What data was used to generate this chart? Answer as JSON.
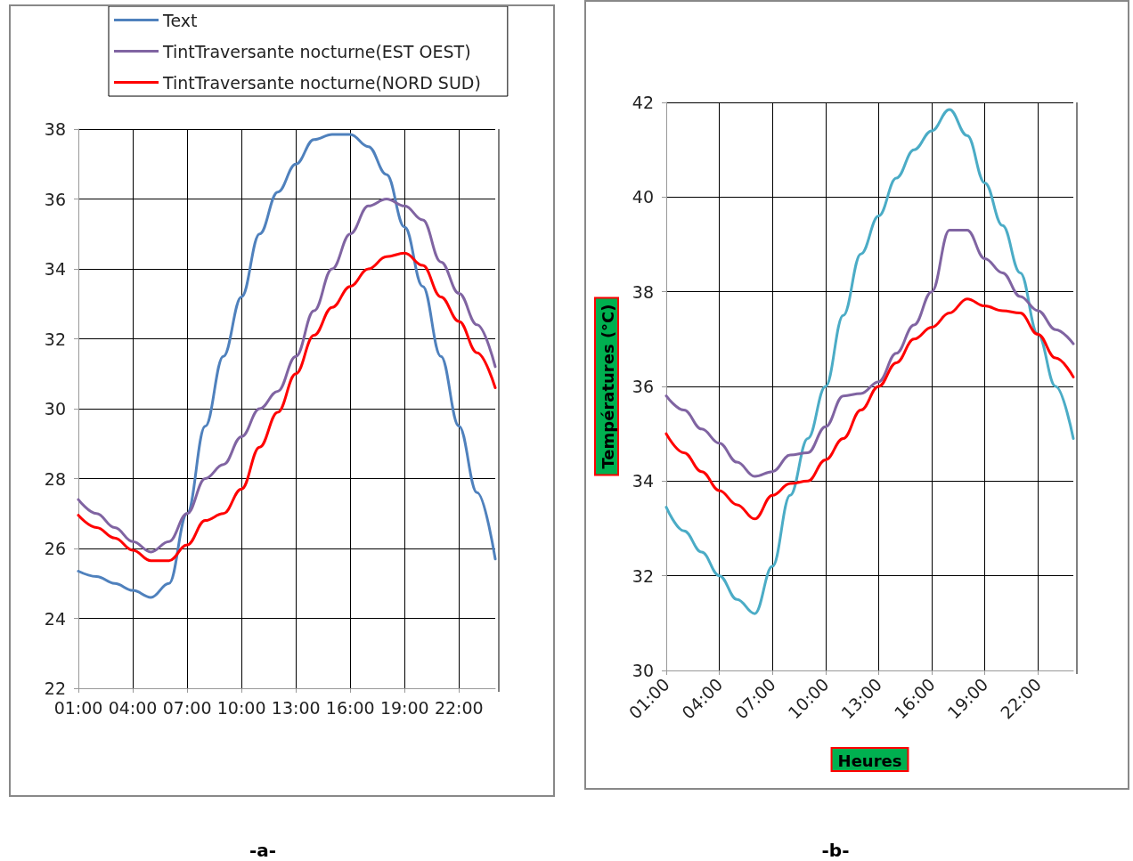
{
  "chart_data": [
    {
      "type": "line",
      "x": [
        1,
        2,
        3,
        4,
        5,
        6,
        7,
        8,
        9,
        10,
        11,
        12,
        13,
        14,
        15,
        16,
        17,
        18,
        19,
        20,
        21,
        22,
        23,
        24
      ],
      "xlim": [
        1,
        24
      ],
      "xticks": [
        {
          "value": 1,
          "label": "01:00"
        },
        {
          "value": 4,
          "label": "04:00"
        },
        {
          "value": 7,
          "label": "07:00"
        },
        {
          "value": 10,
          "label": "10:00"
        },
        {
          "value": 13,
          "label": "13:00"
        },
        {
          "value": 16,
          "label": "16:00"
        },
        {
          "value": 19,
          "label": "19:00"
        },
        {
          "value": 22,
          "label": "22:00"
        }
      ],
      "ylim": [
        22,
        38
      ],
      "yticks": [
        22,
        24,
        26,
        28,
        30,
        32,
        34,
        36,
        38
      ],
      "grid": true,
      "legend": "top",
      "marker": "none",
      "annotations": [
        "-a-"
      ],
      "series": [
        {
          "name": "Text",
          "color": "#4f81bd",
          "values": [
            25.35,
            25.2,
            25.0,
            24.8,
            24.6,
            25.0,
            27.0,
            29.5,
            31.5,
            33.2,
            35.0,
            36.2,
            37.0,
            37.7,
            37.85,
            37.85,
            37.5,
            36.7,
            35.2,
            33.5,
            31.5,
            29.5,
            27.6,
            25.7
          ]
        },
        {
          "name": "TintTraversante nocturne(EST OEST)",
          "color": "#8064a2",
          "values": [
            27.4,
            27.0,
            26.6,
            26.2,
            25.9,
            26.2,
            27.0,
            28.0,
            28.4,
            29.2,
            30.0,
            30.5,
            31.5,
            32.8,
            34.0,
            35.0,
            35.8,
            36.0,
            35.8,
            35.4,
            34.2,
            33.3,
            32.4,
            31.2
          ]
        },
        {
          "name": "TintTraversante nocturne(NORD SUD)",
          "color": "#ff0000",
          "values": [
            26.95,
            26.6,
            26.3,
            25.95,
            25.65,
            25.65,
            26.1,
            26.8,
            27.0,
            27.7,
            28.9,
            29.9,
            31.0,
            32.1,
            32.9,
            33.5,
            34.0,
            34.35,
            34.45,
            34.1,
            33.2,
            32.5,
            31.6,
            30.6
          ]
        }
      ]
    },
    {
      "type": "line",
      "x": [
        1,
        2,
        3,
        4,
        5,
        6,
        7,
        8,
        9,
        10,
        11,
        12,
        13,
        14,
        15,
        16,
        17,
        18,
        19,
        20,
        21,
        22,
        23,
        24
      ],
      "xlim": [
        1,
        24
      ],
      "xticks": [
        {
          "value": 1,
          "label": "01:00"
        },
        {
          "value": 4,
          "label": "04:00"
        },
        {
          "value": 7,
          "label": "07:00"
        },
        {
          "value": 10,
          "label": "10:00"
        },
        {
          "value": 13,
          "label": "13:00"
        },
        {
          "value": 16,
          "label": "16:00"
        },
        {
          "value": 19,
          "label": "19:00"
        },
        {
          "value": 22,
          "label": "22:00"
        }
      ],
      "ylim": [
        30,
        42
      ],
      "yticks": [
        30,
        32,
        34,
        36,
        38,
        40,
        42
      ],
      "grid": true,
      "marker": "none",
      "xlabel": "Heures",
      "ylabel": "Températures (°C)",
      "annotations": [
        "-b-"
      ],
      "series": [
        {
          "color": "#4bacc6",
          "values": [
            33.45,
            32.95,
            32.5,
            32.0,
            31.5,
            31.2,
            32.2,
            33.7,
            34.9,
            36.0,
            37.5,
            38.8,
            39.6,
            40.4,
            41.0,
            41.4,
            41.85,
            41.3,
            40.3,
            39.4,
            38.4,
            37.1,
            36.0,
            34.9
          ]
        },
        {
          "color": "#8064a2",
          "values": [
            35.8,
            35.5,
            35.1,
            34.8,
            34.4,
            34.1,
            34.2,
            34.55,
            34.6,
            35.15,
            35.8,
            35.85,
            36.1,
            36.7,
            37.3,
            38.0,
            39.3,
            39.3,
            38.7,
            38.4,
            37.9,
            37.6,
            37.2,
            36.9
          ]
        },
        {
          "color": "#ff0000",
          "values": [
            35.0,
            34.6,
            34.2,
            33.8,
            33.5,
            33.2,
            33.7,
            33.95,
            34.0,
            34.45,
            34.9,
            35.5,
            36.0,
            36.5,
            37.0,
            37.25,
            37.55,
            37.85,
            37.7,
            37.6,
            37.55,
            37.1,
            36.6,
            36.2
          ]
        }
      ]
    }
  ]
}
